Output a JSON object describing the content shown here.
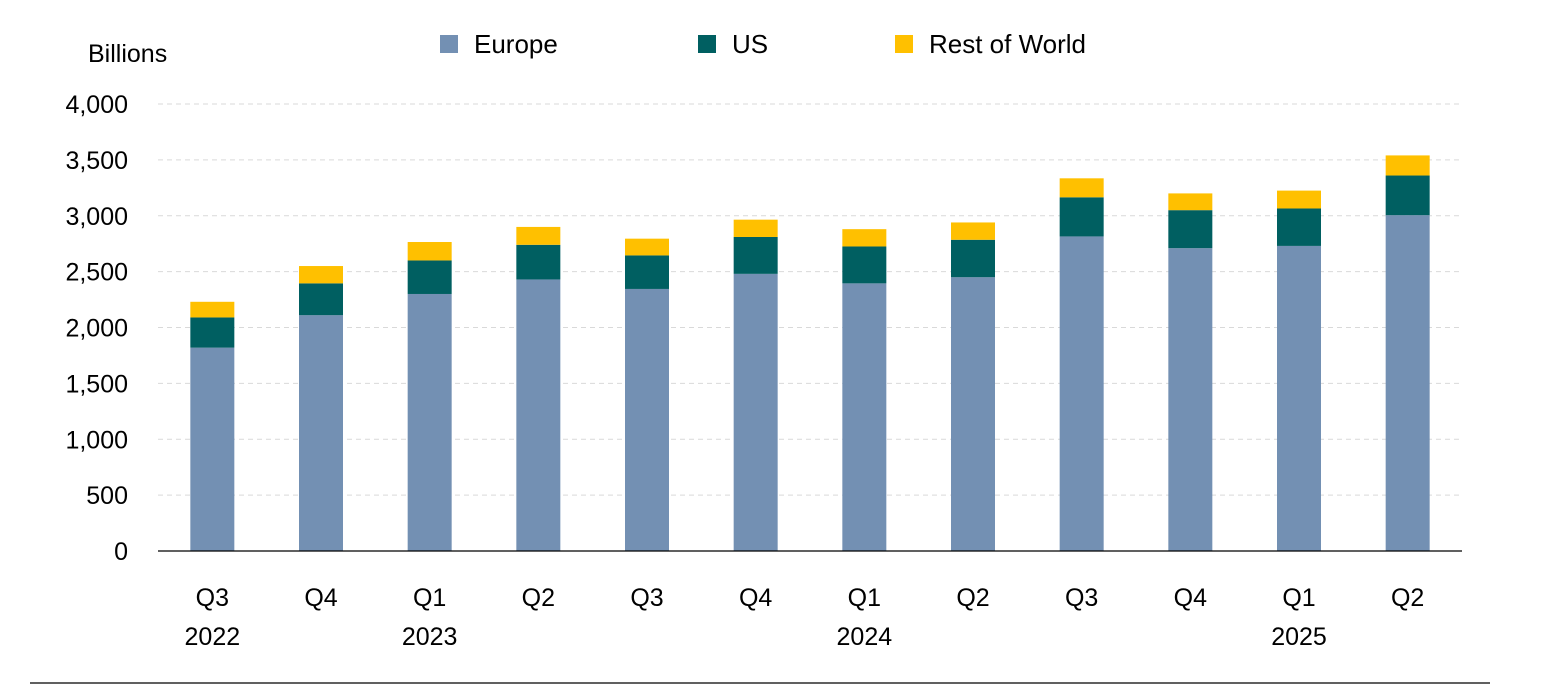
{
  "chart_data": {
    "type": "bar",
    "stacked": true,
    "ylabel": "Billions",
    "ylim": [
      0,
      4000
    ],
    "yticks": [
      0,
      500,
      1000,
      1500,
      2000,
      2500,
      3000,
      3500,
      4000
    ],
    "ytick_labels": [
      "0",
      "500",
      "1,000",
      "1,500",
      "2,000",
      "2,500",
      "3,000",
      "3,500",
      "4,000"
    ],
    "grid": true,
    "legend_position": "top",
    "categories": [
      {
        "quarter": "Q3",
        "year": "2022"
      },
      {
        "quarter": "Q4",
        "year": ""
      },
      {
        "quarter": "Q1",
        "year": "2023"
      },
      {
        "quarter": "Q2",
        "year": ""
      },
      {
        "quarter": "Q3",
        "year": ""
      },
      {
        "quarter": "Q4",
        "year": ""
      },
      {
        "quarter": "Q1",
        "year": "2024"
      },
      {
        "quarter": "Q2",
        "year": ""
      },
      {
        "quarter": "Q3",
        "year": ""
      },
      {
        "quarter": "Q4",
        "year": ""
      },
      {
        "quarter": "Q1",
        "year": "2025"
      },
      {
        "quarter": "Q2",
        "year": ""
      }
    ],
    "series": [
      {
        "name": "Europe",
        "color": "#7390b3",
        "values": [
          1820,
          2110,
          2300,
          2430,
          2345,
          2480,
          2395,
          2450,
          2815,
          2710,
          2730,
          3005
        ]
      },
      {
        "name": "US",
        "color": "#005f61",
        "values": [
          270,
          285,
          300,
          310,
          300,
          330,
          330,
          335,
          350,
          340,
          335,
          355
        ]
      },
      {
        "name": "Rest of World",
        "color": "#ffc000",
        "values": [
          140,
          155,
          165,
          160,
          150,
          155,
          155,
          155,
          170,
          150,
          160,
          180
        ]
      }
    ]
  }
}
